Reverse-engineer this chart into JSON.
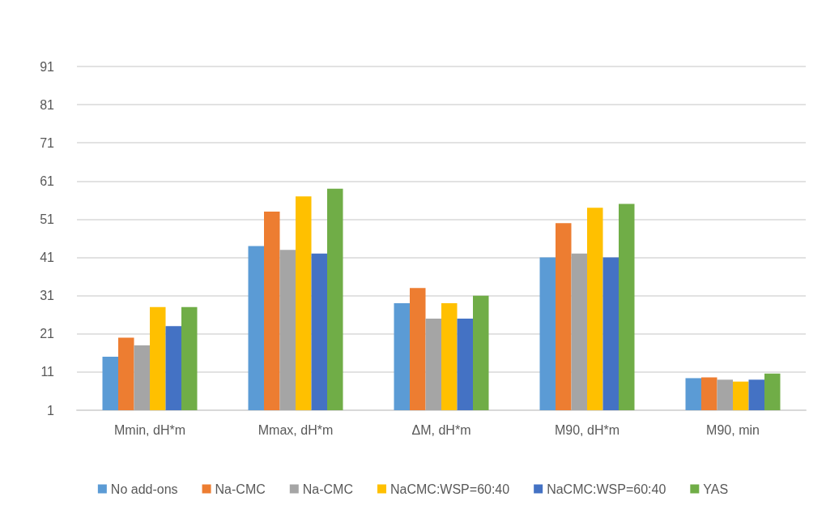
{
  "chart_data": {
    "type": "bar",
    "categories": [
      "Mmin, dH*m",
      "Mmax, dH*m",
      "ΔM, dH*m",
      "M90, dH*m",
      "M90, min"
    ],
    "series": [
      {
        "name": "No add-ons",
        "color": "#5b9bd5",
        "values": [
          15,
          44,
          29,
          41,
          9.4
        ]
      },
      {
        "name": "Na-CMC",
        "color": "#ed7d31",
        "values": [
          20,
          53,
          33,
          50,
          9.6
        ]
      },
      {
        "name": "Na-CMC",
        "color": "#a5a5a5",
        "values": [
          18,
          43,
          25,
          42,
          9.0
        ]
      },
      {
        "name": "NaCMC:WSP=60:40",
        "color": "#ffc000",
        "values": [
          28,
          57,
          29,
          54,
          8.5
        ]
      },
      {
        "name": "NaCMC:WSP=60:40",
        "color": "#4472c4",
        "values": [
          23,
          42,
          25,
          41,
          9.0
        ]
      },
      {
        "name": "YAS",
        "color": "#70ad47",
        "values": [
          28,
          59,
          31,
          55,
          10.6
        ]
      }
    ],
    "ylim": [
      1,
      91
    ],
    "yticks": [
      1,
      11,
      21,
      31,
      41,
      51,
      61,
      71,
      81,
      91
    ],
    "grid": "y",
    "legend": "bottom"
  }
}
